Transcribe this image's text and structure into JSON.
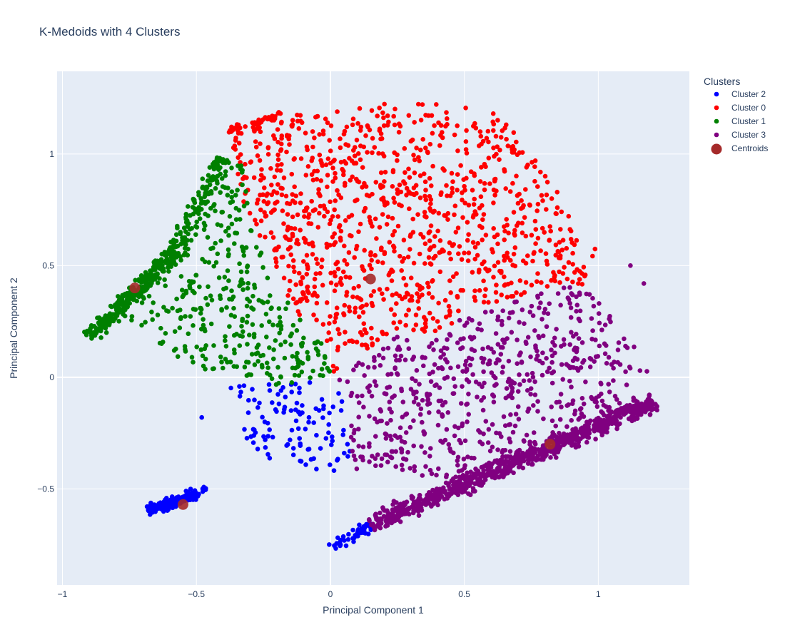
{
  "chart_data": {
    "type": "scatter",
    "title": "K-Medoids with 4 Clusters",
    "xlabel": "Principal Component 1",
    "ylabel": "Principal Component 2",
    "xlim": [
      -1.02,
      1.34
    ],
    "ylim": [
      -0.93,
      1.37
    ],
    "xticks": [
      -1,
      -0.5,
      0,
      0.5,
      1
    ],
    "xtick_labels": [
      "−1",
      "−0.5",
      "0",
      "0.5",
      "1"
    ],
    "yticks": [
      -0.5,
      0,
      0.5,
      1
    ],
    "ytick_labels": [
      "−0.5",
      "0",
      "0.5",
      "1"
    ],
    "grid": true,
    "plot_background": "#e5ecf6",
    "legend": {
      "title": "Clusters",
      "position": "right"
    },
    "series": [
      {
        "name": "Cluster 2",
        "color": "#0000ff",
        "regions": [
          {
            "kind": "band",
            "from": [
              -0.68,
              -0.6
            ],
            "to": [
              -0.5,
              -0.52
            ],
            "width": 0.035,
            "n": 170
          },
          {
            "kind": "band",
            "from": [
              -0.51,
              -0.54
            ],
            "to": [
              -0.46,
              -0.49
            ],
            "width": 0.02,
            "n": 10
          },
          {
            "kind": "band",
            "from": [
              0.0,
              -0.76
            ],
            "to": [
              0.16,
              -0.66
            ],
            "width": 0.04,
            "n": 45
          },
          {
            "kind": "poly",
            "pts": [
              [
                -0.38,
                -0.04
              ],
              [
                -0.05,
                -0.02
              ],
              [
                0.07,
                -0.06
              ],
              [
                0.08,
                -0.42
              ],
              [
                -0.05,
                -0.42
              ],
              [
                -0.3,
                -0.35
              ]
            ],
            "n": 110
          }
        ],
        "points": [
          {
            "x": -0.48,
            "y": -0.18
          }
        ]
      },
      {
        "name": "Cluster 0",
        "color": "#ff0000",
        "regions": [
          {
            "kind": "band",
            "from": [
              -0.38,
              1.1
            ],
            "to": [
              -0.18,
              1.17
            ],
            "width": 0.025,
            "n": 40
          },
          {
            "kind": "poly",
            "pts": [
              [
                -0.38,
                1.08
              ],
              [
                -0.18,
                1.17
              ],
              [
                0.05,
                1.2
              ],
              [
                0.28,
                1.24
              ],
              [
                0.5,
                1.23
              ],
              [
                0.65,
                1.17
              ],
              [
                0.75,
                1.0
              ],
              [
                0.92,
                0.7
              ],
              [
                1.0,
                0.6
              ],
              [
                0.95,
                0.4
              ],
              [
                0.8,
                0.4
              ],
              [
                0.55,
                0.3
              ],
              [
                0.4,
                0.2
              ],
              [
                0.28,
                0.2
              ],
              [
                0.12,
                0.12
              ],
              [
                0.05,
                0.05
              ],
              [
                0.02,
                0.0
              ],
              [
                -0.02,
                0.15
              ],
              [
                -0.1,
                0.25
              ],
              [
                -0.18,
                0.4
              ],
              [
                -0.25,
                0.6
              ],
              [
                -0.32,
                0.72
              ],
              [
                -0.35,
                0.95
              ]
            ],
            "n": 1050
          }
        ]
      },
      {
        "name": "Cluster 1",
        "color": "#008000",
        "regions": [
          {
            "kind": "band",
            "from": [
              -0.9,
              0.18
            ],
            "to": [
              -0.58,
              0.56
            ],
            "width": 0.05,
            "n": 300
          },
          {
            "kind": "band",
            "from": [
              -0.58,
              0.56
            ],
            "to": [
              -0.4,
              0.98
            ],
            "width": 0.05,
            "n": 110
          },
          {
            "kind": "poly",
            "pts": [
              [
                -0.78,
                0.28
              ],
              [
                -0.6,
                0.6
              ],
              [
                -0.42,
                0.98
              ],
              [
                -0.33,
                0.95
              ],
              [
                -0.3,
                0.72
              ],
              [
                -0.25,
                0.6
              ],
              [
                -0.18,
                0.4
              ],
              [
                -0.1,
                0.25
              ],
              [
                -0.02,
                0.15
              ],
              [
                0.02,
                0.0
              ],
              [
                -0.2,
                -0.04
              ],
              [
                -0.45,
                0.0
              ],
              [
                -0.6,
                0.1
              ],
              [
                -0.72,
                0.2
              ]
            ],
            "n": 370
          }
        ]
      },
      {
        "name": "Cluster 3",
        "color": "#800080",
        "regions": [
          {
            "kind": "band",
            "from": [
              0.15,
              -0.66
            ],
            "to": [
              1.21,
              -0.11
            ],
            "width": 0.06,
            "n": 750
          },
          {
            "kind": "poly",
            "pts": [
              [
                0.02,
                -0.02
              ],
              [
                0.12,
                0.12
              ],
              [
                0.28,
                0.2
              ],
              [
                0.4,
                0.2
              ],
              [
                0.55,
                0.3
              ],
              [
                0.8,
                0.4
              ],
              [
                0.95,
                0.42
              ],
              [
                1.1,
                0.2
              ],
              [
                1.2,
                0.02
              ],
              [
                1.15,
                -0.15
              ],
              [
                0.9,
                -0.28
              ],
              [
                0.6,
                -0.45
              ],
              [
                0.4,
                -0.48
              ],
              [
                0.2,
                -0.4
              ],
              [
                0.08,
                -0.42
              ],
              [
                0.07,
                -0.06
              ]
            ],
            "n": 650
          }
        ],
        "points": [
          {
            "x": 1.12,
            "y": 0.5
          },
          {
            "x": 1.17,
            "y": 0.42
          }
        ]
      }
    ],
    "centroids": {
      "name": "Centroids",
      "color": "#a52a2a",
      "points": [
        {
          "x": -0.73,
          "y": 0.4
        },
        {
          "x": 0.15,
          "y": 0.44
        },
        {
          "x": -0.55,
          "y": -0.57
        },
        {
          "x": 0.82,
          "y": -0.3
        }
      ]
    }
  }
}
